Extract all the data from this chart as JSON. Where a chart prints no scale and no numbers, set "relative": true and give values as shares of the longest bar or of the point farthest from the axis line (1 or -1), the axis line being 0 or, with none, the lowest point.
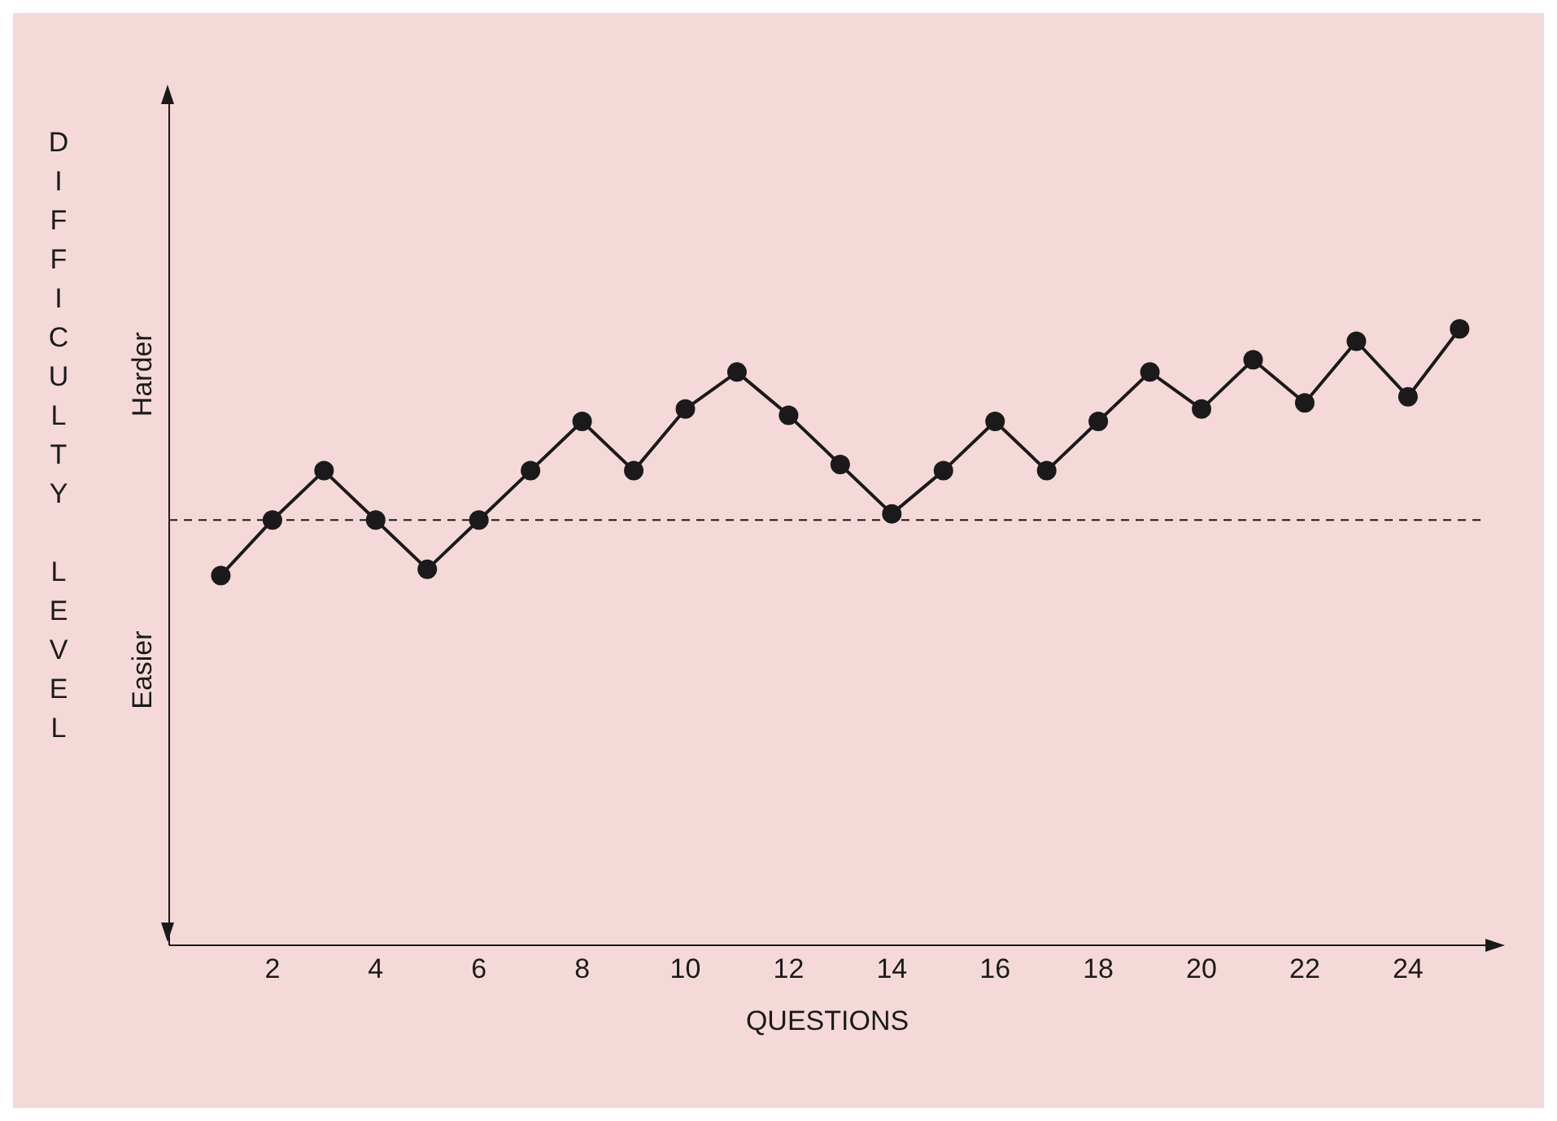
{
  "chart_data": {
    "type": "line",
    "relative": true,
    "xlabel": "QUESTIONS",
    "ylabel": "DIFFICULTY LEVEL",
    "annotations": [
      "Harder",
      "Easier"
    ],
    "x": [
      1,
      2,
      3,
      4,
      5,
      6,
      7,
      8,
      9,
      10,
      11,
      12,
      13,
      14,
      15,
      16,
      17,
      18,
      19,
      20,
      21,
      22,
      23,
      24,
      25
    ],
    "series": [
      {
        "color": "#1a1a1a",
        "values": [
          0.6,
          0.69,
          0.77,
          0.69,
          0.61,
          0.69,
          0.77,
          0.85,
          0.77,
          0.87,
          0.93,
          0.86,
          0.78,
          0.7,
          0.77,
          0.85,
          0.77,
          0.85,
          0.93,
          0.87,
          0.95,
          0.88,
          0.98,
          0.89,
          1
        ]
      }
    ],
    "xlim": [
      0,
      25.5
    ],
    "xticks": [
      2,
      4,
      6,
      8,
      10,
      12,
      14,
      16,
      18,
      20,
      22,
      24
    ],
    "ref_lines": [
      {
        "axis": "y",
        "value": 0.69,
        "line_style": "dashed",
        "color": "#1a1a1a"
      }
    ],
    "marker": "circle",
    "line_style": "solid",
    "grid": false,
    "legend": false
  }
}
